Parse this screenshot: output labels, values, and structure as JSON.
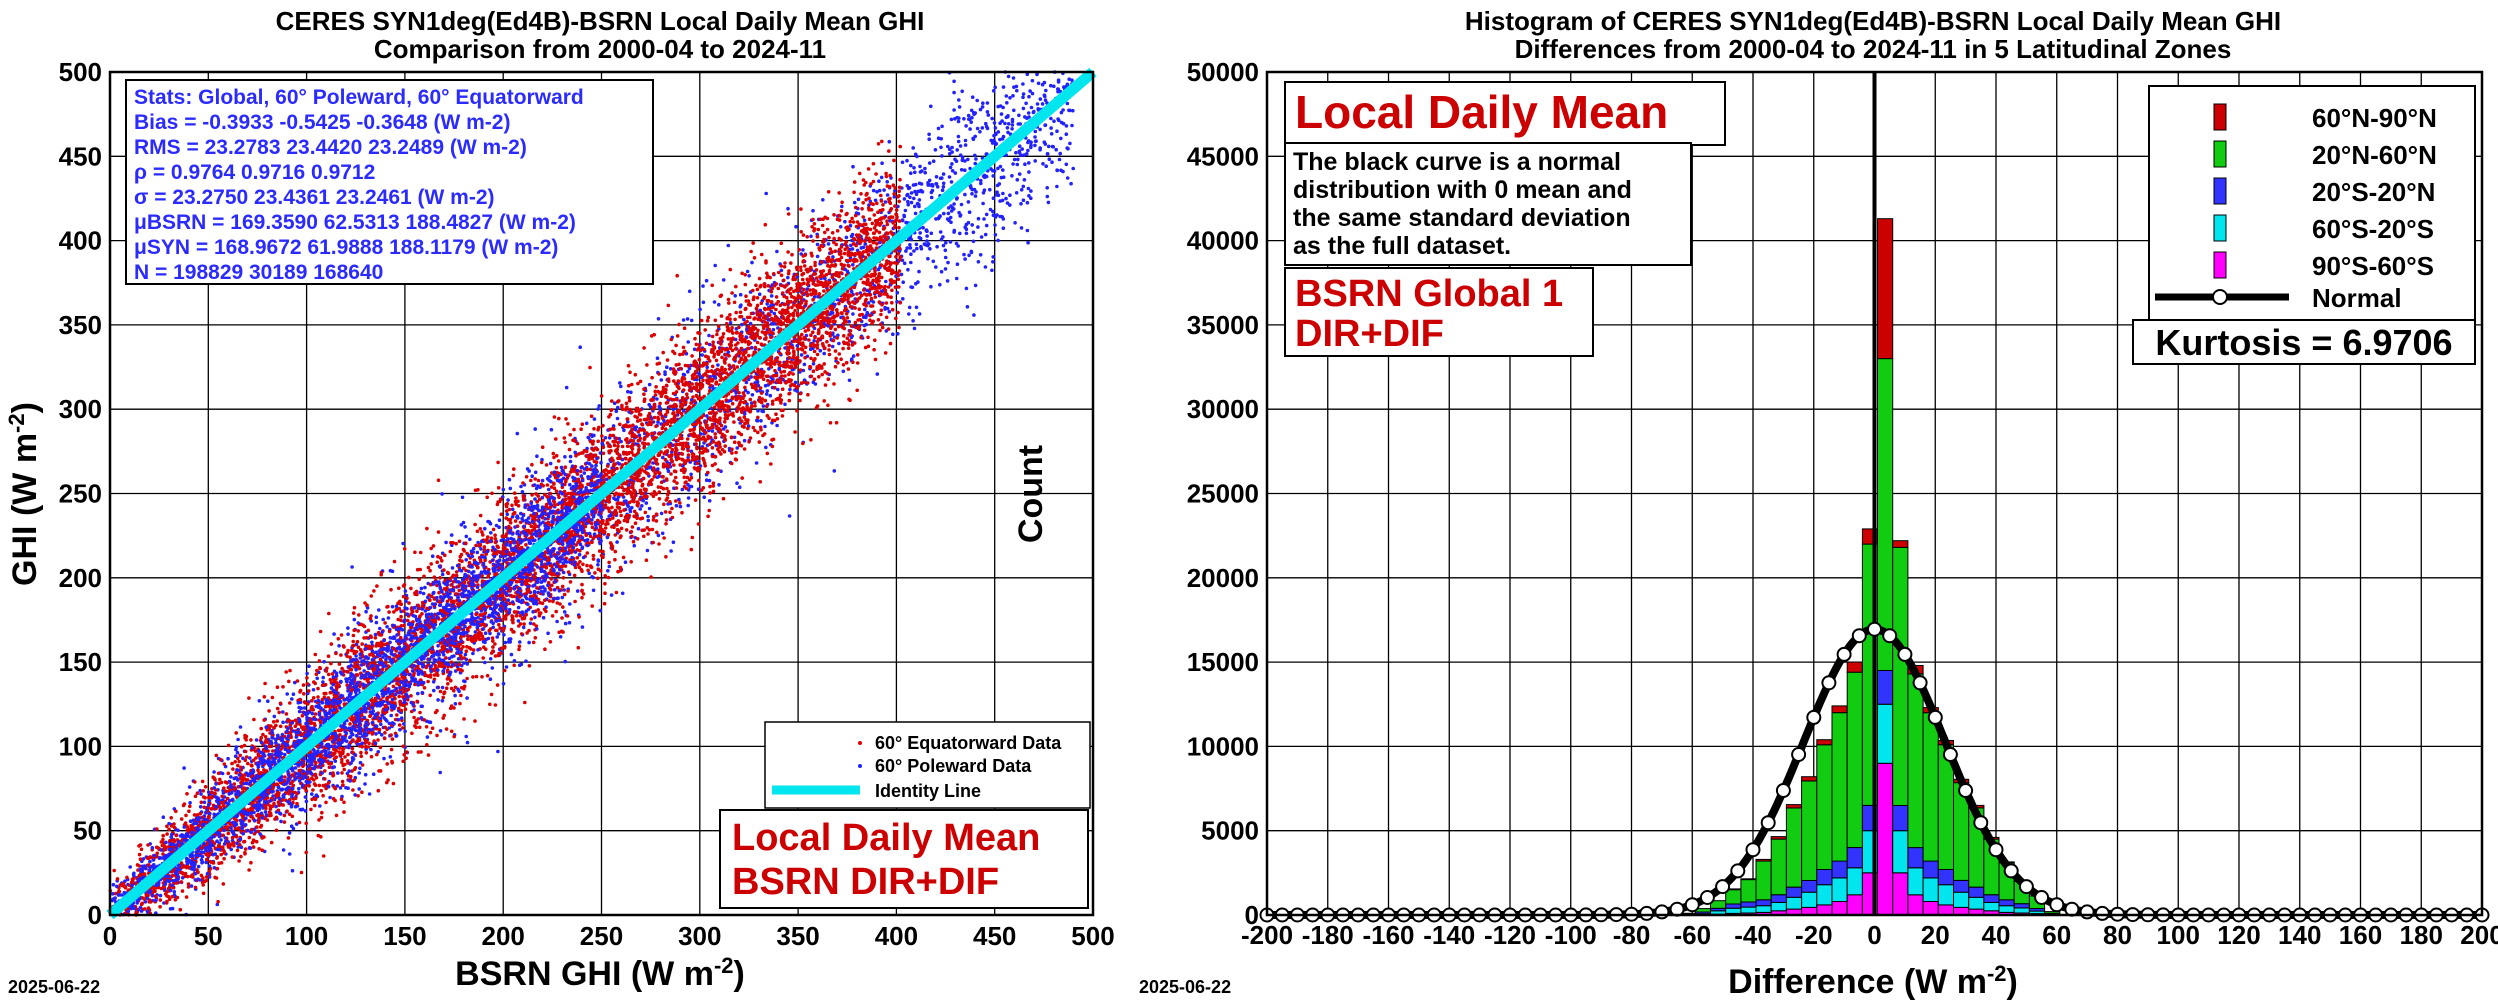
{
  "date_stamp": "2025-06-22",
  "colors": {
    "equatorward": "#dd0000",
    "poleward": "#2222ff",
    "identity": "#00e5ee",
    "z60N90N": "#cc0000",
    "z20N60N": "#11cc11",
    "z20S20N": "#3333ff",
    "z60S20S": "#00e5ee",
    "z90S60S": "#ff00ff",
    "label_red": "#cc0000",
    "stats_blue": "#2b2bff"
  },
  "scatter": {
    "title_line1": "CERES SYN1deg(Ed4B)-BSRN Local Daily Mean GHI",
    "title_line2": "Comparison from 2000-04 to 2024-11",
    "stats": [
      "Stats: Global, 60° Poleward, 60° Equatorward",
      "Bias =     -0.3933      -0.5425      -0.3648   (W m-2)",
      "RMS =     23.2783     23.4420     23.2489   (W m-2)",
      "ρ =          0.9764      0.9716      0.9712",
      "σ =          23.2750     23.4361     23.2461   (W m-2)",
      "μBSRN = 169.3590   62.5313  188.4827   (W m-2)",
      "μSYN =   168.9672   61.9888  188.1179   (W m-2)",
      "N = 198829       30189       168640"
    ],
    "legend": [
      "60° Equatorward Data",
      "60° Poleward Data",
      "Identity Line"
    ],
    "label_line1": "Local Daily Mean",
    "label_line2": "BSRN DIR+DIF"
  },
  "histogram": {
    "title_line1": "Histogram of CERES SYN1deg(Ed4B)-BSRN Local Daily Mean GHI",
    "title_line2": "Differences from 2000-04 to 2024-11 in 5 Latitudinal Zones",
    "label_main": "Local Daily Mean",
    "note": [
      "The black curve is a normal",
      "distribution with 0 mean and",
      "the same standard deviation",
      "as the full dataset."
    ],
    "label_sub1": "BSRN Global 1",
    "label_sub2": "DIR+DIF",
    "legend": [
      "60°N-90°N",
      "20°N-60°N",
      "20°S-20°N",
      "60°S-20°S",
      "90°S-60°S",
      "Normal"
    ],
    "kurtosis": "Kurtosis = 6.9706"
  },
  "chart_data": [
    {
      "type": "scatter",
      "title": "CERES SYN1deg(Ed4B)-BSRN Local Daily Mean GHI Comparison from 2000-04 to 2024-11",
      "xlabel": "BSRN GHI (W m-2)",
      "ylabel": "GHI (W m-2)",
      "xlim": [
        0,
        500
      ],
      "ylim": [
        0,
        500
      ],
      "xticks": [
        0,
        50,
        100,
        150,
        200,
        250,
        300,
        350,
        400,
        450,
        500
      ],
      "yticks": [
        0,
        50,
        100,
        150,
        200,
        250,
        300,
        350,
        400,
        450,
        500
      ],
      "grid": true,
      "legend_position": "bottom-right",
      "series": [
        {
          "name": "60° Equatorward Data",
          "n": 168640,
          "bias": -0.3648,
          "rms": 23.2489
        },
        {
          "name": "60° Poleward Data",
          "n": 30189,
          "bias": -0.5425,
          "rms": 23.442
        },
        {
          "name": "Identity Line",
          "x": [
            0,
            500
          ],
          "y": [
            0,
            500
          ]
        }
      ]
    },
    {
      "type": "bar",
      "stacked": true,
      "title": "Histogram of CERES SYN1deg(Ed4B)-BSRN Local Daily Mean GHI Differences from 2000-04 to 2024-11 in 5 Latitudinal Zones",
      "xlabel": "Difference (W m-2)",
      "ylabel": "Count",
      "xlim": [
        -200,
        200
      ],
      "ylim": [
        0,
        50000
      ],
      "xticks": [
        -200,
        -180,
        -160,
        -140,
        -120,
        -100,
        -80,
        -60,
        -40,
        -20,
        0,
        20,
        40,
        60,
        80,
        100,
        120,
        140,
        160,
        180,
        200
      ],
      "yticks": [
        0,
        5000,
        10000,
        15000,
        20000,
        25000,
        30000,
        35000,
        40000,
        45000,
        50000
      ],
      "grid": true,
      "legend_position": "top-right",
      "x": [
        -64,
        -59,
        -54,
        -49,
        -44,
        -39,
        -34,
        -29,
        -24,
        -19,
        -14,
        -9,
        -4,
        1,
        6,
        11,
        16,
        21,
        26,
        31,
        36,
        41,
        46,
        51,
        56
      ],
      "series": [
        {
          "name": "90°S-60°S",
          "values": [
            0,
            0,
            50,
            100,
            120,
            150,
            250,
            350,
            450,
            600,
            800,
            1200,
            2500,
            9000,
            2500,
            1200,
            800,
            600,
            450,
            350,
            250,
            150,
            120,
            80,
            0
          ]
        },
        {
          "name": "60°S-20°S",
          "values": [
            50,
            80,
            200,
            300,
            350,
            400,
            500,
            700,
            900,
            1200,
            1400,
            1600,
            2500,
            3500,
            2500,
            1600,
            1400,
            1200,
            900,
            700,
            500,
            400,
            300,
            150,
            50
          ]
        },
        {
          "name": "20°S-20°N",
          "values": [
            50,
            100,
            150,
            250,
            300,
            350,
            450,
            600,
            700,
            900,
            1000,
            1200,
            1500,
            2000,
            1500,
            1200,
            1000,
            900,
            700,
            600,
            450,
            350,
            250,
            150,
            50
          ]
        },
        {
          "name": "20°N-60°N",
          "values": [
            0,
            200,
            450,
            850,
            1330,
            2300,
            3300,
            4700,
            5900,
            7400,
            8800,
            10400,
            15500,
            18500,
            15300,
            10300,
            8800,
            7400,
            5800,
            4700,
            3300,
            2200,
            1330,
            750,
            100
          ]
        },
        {
          "name": "60°N-90°N",
          "values": [
            0,
            0,
            0,
            50,
            50,
            100,
            150,
            200,
            250,
            300,
            400,
            600,
            900,
            8300,
            400,
            500,
            300,
            250,
            200,
            150,
            100,
            50,
            50,
            0,
            0
          ]
        }
      ],
      "normal_curve": {
        "name": "Normal",
        "mean": 0,
        "sigma": 23.275,
        "peak": 16950
      },
      "kurtosis": 6.9706
    }
  ]
}
